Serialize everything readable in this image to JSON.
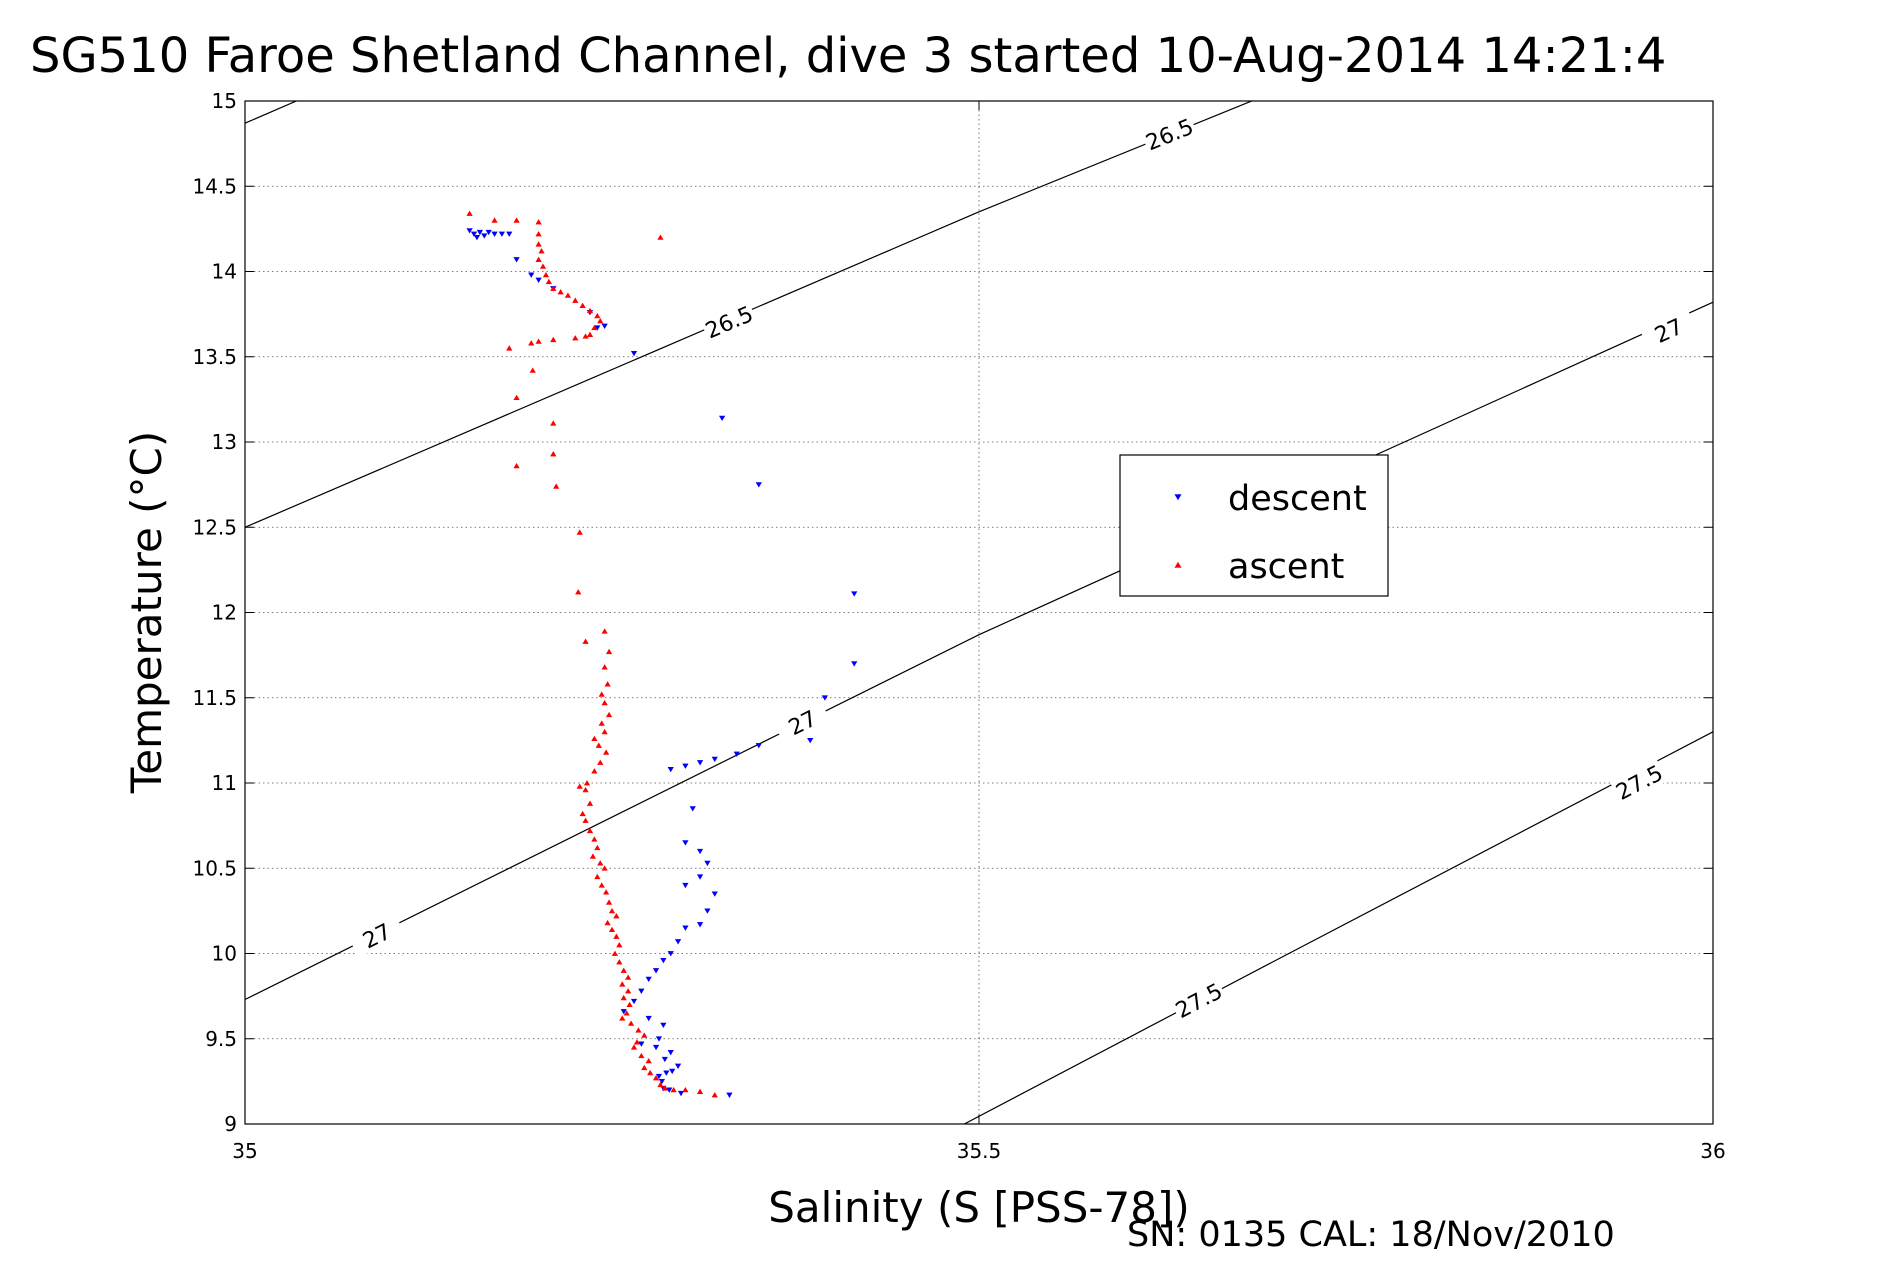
{
  "chart_data": {
    "type": "scatter",
    "title": "SG510 Faroe Shetland Channel, dive 3 started 10-Aug-2014 14:21:4",
    "xlabel": "Salinity (S [PSS-78])",
    "ylabel": "Temperature (°C)",
    "footer": "SN: 0135  CAL: 18/Nov/2010",
    "xlim": [
      35,
      36
    ],
    "ylim": [
      9,
      15
    ],
    "x_ticks": [
      "35",
      "35.5",
      "36"
    ],
    "y_ticks": [
      "9",
      "9.5",
      "10",
      "10.5",
      "11",
      "11.5",
      "12",
      "12.5",
      "13",
      "13.5",
      "14",
      "14.5",
      "15"
    ],
    "grid": true,
    "legend_placement": "center-right",
    "density_contours": [
      {
        "label": "26.5",
        "points": [
          [
            35.0,
            12.5
          ],
          [
            35.5,
            14.35
          ],
          [
            35.7,
            15.05
          ]
        ],
        "label_positions": [
          [
            35.33,
            13.7
          ],
          [
            35.63,
            14.8
          ]
        ]
      },
      {
        "label": "27",
        "points": [
          [
            35.0,
            9.73
          ],
          [
            35.5,
            11.87
          ],
          [
            36.0,
            13.82
          ]
        ],
        "label_positions": [
          [
            35.09,
            10.1
          ],
          [
            35.38,
            11.35
          ],
          [
            35.97,
            13.65
          ]
        ]
      },
      {
        "label": "27.5",
        "points": [
          [
            35.49,
            9.0
          ],
          [
            35.7,
            9.95
          ],
          [
            36.0,
            11.3
          ]
        ],
        "label_positions": [
          [
            35.65,
            9.72
          ],
          [
            35.95,
            11.0
          ]
        ]
      },
      {
        "label": "",
        "points": [
          [
            35.0,
            14.87
          ],
          [
            35.035,
            15.0
          ]
        ],
        "label_positions": []
      }
    ],
    "series": [
      {
        "name": "descent",
        "color": "#0000ff",
        "marker": "triangle-down",
        "points": [
          [
            35.153,
            14.24
          ],
          [
            35.156,
            14.22
          ],
          [
            35.158,
            14.2
          ],
          [
            35.16,
            14.23
          ],
          [
            35.163,
            14.21
          ],
          [
            35.166,
            14.23
          ],
          [
            35.17,
            14.22
          ],
          [
            35.175,
            14.22
          ],
          [
            35.18,
            14.22
          ],
          [
            35.185,
            14.07
          ],
          [
            35.195,
            13.98
          ],
          [
            35.2,
            13.95
          ],
          [
            35.21,
            13.9
          ],
          [
            35.235,
            13.76
          ],
          [
            35.24,
            13.67
          ],
          [
            35.245,
            13.68
          ],
          [
            35.265,
            13.52
          ],
          [
            35.325,
            13.14
          ],
          [
            35.35,
            12.75
          ],
          [
            35.415,
            12.11
          ],
          [
            35.415,
            11.7
          ],
          [
            35.395,
            11.5
          ],
          [
            35.385,
            11.25
          ],
          [
            35.35,
            11.22
          ],
          [
            35.335,
            11.17
          ],
          [
            35.32,
            11.14
          ],
          [
            35.31,
            11.12
          ],
          [
            35.3,
            11.1
          ],
          [
            35.29,
            11.08
          ],
          [
            35.305,
            10.85
          ],
          [
            35.3,
            10.65
          ],
          [
            35.31,
            10.6
          ],
          [
            35.315,
            10.53
          ],
          [
            35.31,
            10.45
          ],
          [
            35.3,
            10.4
          ],
          [
            35.32,
            10.35
          ],
          [
            35.315,
            10.25
          ],
          [
            35.31,
            10.17
          ],
          [
            35.3,
            10.15
          ],
          [
            35.295,
            10.07
          ],
          [
            35.29,
            10.0
          ],
          [
            35.285,
            9.96
          ],
          [
            35.28,
            9.9
          ],
          [
            35.275,
            9.85
          ],
          [
            35.27,
            9.78
          ],
          [
            35.265,
            9.72
          ],
          [
            35.258,
            9.66
          ],
          [
            35.275,
            9.62
          ],
          [
            35.285,
            9.58
          ],
          [
            35.282,
            9.5
          ],
          [
            35.27,
            9.47
          ],
          [
            35.28,
            9.45
          ],
          [
            35.29,
            9.42
          ],
          [
            35.286,
            9.38
          ],
          [
            35.295,
            9.34
          ],
          [
            35.291,
            9.31
          ],
          [
            35.287,
            9.3
          ],
          [
            35.282,
            9.28
          ],
          [
            35.284,
            9.25
          ],
          [
            35.285,
            9.21
          ],
          [
            35.289,
            9.2
          ],
          [
            35.297,
            9.18
          ],
          [
            35.33,
            9.17
          ]
        ]
      },
      {
        "name": "ascent",
        "color": "#ff0000",
        "marker": "triangle-up",
        "points": [
          [
            35.153,
            14.34
          ],
          [
            35.17,
            14.3
          ],
          [
            35.185,
            14.3
          ],
          [
            35.2,
            14.29
          ],
          [
            35.2,
            14.22
          ],
          [
            35.2,
            14.16
          ],
          [
            35.202,
            14.12
          ],
          [
            35.2,
            14.07
          ],
          [
            35.203,
            14.03
          ],
          [
            35.205,
            13.98
          ],
          [
            35.207,
            13.94
          ],
          [
            35.21,
            13.9
          ],
          [
            35.215,
            13.88
          ],
          [
            35.22,
            13.86
          ],
          [
            35.225,
            13.83
          ],
          [
            35.23,
            13.8
          ],
          [
            35.235,
            13.77
          ],
          [
            35.24,
            13.74
          ],
          [
            35.242,
            13.71
          ],
          [
            35.238,
            13.67
          ],
          [
            35.235,
            13.63
          ],
          [
            35.232,
            13.62
          ],
          [
            35.225,
            13.61
          ],
          [
            35.21,
            13.6
          ],
          [
            35.2,
            13.59
          ],
          [
            35.195,
            13.58
          ],
          [
            35.18,
            13.55
          ],
          [
            35.196,
            13.42
          ],
          [
            35.185,
            13.26
          ],
          [
            35.21,
            13.11
          ],
          [
            35.21,
            12.93
          ],
          [
            35.185,
            12.86
          ],
          [
            35.212,
            12.74
          ],
          [
            35.283,
            14.2
          ],
          [
            35.228,
            12.47
          ],
          [
            35.227,
            12.12
          ],
          [
            35.232,
            11.83
          ],
          [
            35.245,
            11.89
          ],
          [
            35.248,
            11.77
          ],
          [
            35.245,
            11.68
          ],
          [
            35.247,
            11.58
          ],
          [
            35.243,
            11.52
          ],
          [
            35.245,
            11.47
          ],
          [
            35.248,
            11.4
          ],
          [
            35.243,
            11.35
          ],
          [
            35.245,
            11.3
          ],
          [
            35.238,
            11.26
          ],
          [
            35.241,
            11.22
          ],
          [
            35.246,
            11.18
          ],
          [
            35.242,
            11.12
          ],
          [
            35.238,
            11.07
          ],
          [
            35.233,
            11.0
          ],
          [
            35.228,
            10.98
          ],
          [
            35.232,
            10.96
          ],
          [
            35.235,
            10.88
          ],
          [
            35.23,
            10.82
          ],
          [
            35.232,
            10.78
          ],
          [
            35.235,
            10.72
          ],
          [
            35.238,
            10.67
          ],
          [
            35.24,
            10.62
          ],
          [
            35.237,
            10.57
          ],
          [
            35.242,
            10.53
          ],
          [
            35.245,
            10.5
          ],
          [
            35.24,
            10.45
          ],
          [
            35.243,
            10.4
          ],
          [
            35.246,
            10.36
          ],
          [
            35.248,
            10.3
          ],
          [
            35.25,
            10.25
          ],
          [
            35.253,
            10.22
          ],
          [
            35.247,
            10.18
          ],
          [
            35.25,
            10.14
          ],
          [
            35.253,
            10.1
          ],
          [
            35.255,
            10.05
          ],
          [
            35.252,
            10.0
          ],
          [
            35.255,
            9.95
          ],
          [
            35.258,
            9.9
          ],
          [
            35.261,
            9.86
          ],
          [
            35.257,
            9.82
          ],
          [
            35.261,
            9.78
          ],
          [
            35.258,
            9.74
          ],
          [
            35.262,
            9.7
          ],
          [
            35.26,
            9.65
          ],
          [
            35.257,
            9.62
          ],
          [
            35.263,
            9.59
          ],
          [
            35.268,
            9.55
          ],
          [
            35.272,
            9.52
          ],
          [
            35.267,
            9.48
          ],
          [
            35.265,
            9.45
          ],
          [
            35.27,
            9.4
          ],
          [
            35.275,
            9.37
          ],
          [
            35.272,
            9.33
          ],
          [
            35.276,
            9.3
          ],
          [
            35.28,
            9.27
          ],
          [
            35.283,
            9.23
          ],
          [
            35.286,
            9.21
          ],
          [
            35.292,
            9.2
          ],
          [
            35.3,
            9.2
          ],
          [
            35.31,
            9.19
          ],
          [
            35.32,
            9.17
          ]
        ]
      }
    ]
  }
}
